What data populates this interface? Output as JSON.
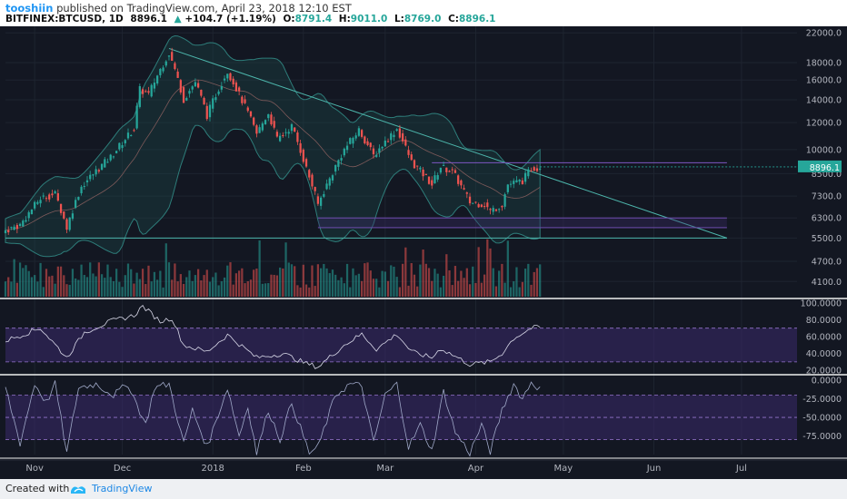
{
  "header": {
    "author": "tooshiin",
    "published": "published on TradingView.com, April 23, 2018 12:10 EST",
    "symbol": "BITFINEX:BTCUSD, 1D",
    "last": "8896.1",
    "change": "+104.7 (+1.19%)",
    "open_label": "O:",
    "open": "8791.4",
    "high_label": "H:",
    "high": "9011.0",
    "low_label": "L:",
    "low": "8769.0",
    "close_label": "C:",
    "close": "8896.1"
  },
  "footer": {
    "created": "Created with",
    "brand": "TradingView"
  },
  "colors": {
    "up": "#26a69a",
    "down": "#ef5350",
    "background": "#131722",
    "grid": "#1e2430",
    "rsi_band": "#3b2a6b",
    "line": "#d8d8e8"
  },
  "chart_data": [
    {
      "type": "line",
      "name": "price",
      "scale": "log",
      "ylim": [
        3700,
        23000
      ],
      "price_ticks": [
        "22000.0",
        "18000.0",
        "16000.0",
        "14000.0",
        "12000.0",
        "10000.0",
        "8500.0",
        "7300.0",
        "6300.0",
        "5500.0",
        "4700.0",
        "4100.0"
      ],
      "last_price_label": "8896.1",
      "x_ticks": [
        "Nov",
        "Dec",
        "2018",
        "Feb",
        "Mar",
        "Apr",
        "May",
        "Jun",
        "Jul"
      ],
      "x_range": [
        "2017-10-22",
        "2018-07-20"
      ],
      "keypoints": [
        [
          "2017-10-22",
          5800
        ],
        [
          "2017-10-27",
          6000
        ],
        [
          "2017-11-03",
          7200
        ],
        [
          "2017-11-08",
          7400
        ],
        [
          "2017-11-12",
          5900
        ],
        [
          "2017-11-17",
          7800
        ],
        [
          "2017-11-27",
          9500
        ],
        [
          "2017-12-05",
          11500
        ],
        [
          "2017-12-07",
          15000
        ],
        [
          "2017-12-10",
          14500
        ],
        [
          "2017-12-17",
          19200
        ],
        [
          "2017-12-22",
          14000
        ],
        [
          "2017-12-26",
          15800
        ],
        [
          "2017-12-30",
          12600
        ],
        [
          "2018-01-06",
          17000
        ],
        [
          "2018-01-10",
          14500
        ],
        [
          "2018-01-16",
          11100
        ],
        [
          "2018-01-20",
          12800
        ],
        [
          "2018-01-23",
          10700
        ],
        [
          "2018-01-28",
          11700
        ],
        [
          "2018-02-02",
          8800
        ],
        [
          "2018-02-06",
          6900
        ],
        [
          "2018-02-10",
          8200
        ],
        [
          "2018-02-15",
          10000
        ],
        [
          "2018-02-20",
          11400
        ],
        [
          "2018-02-25",
          9600
        ],
        [
          "2018-03-05",
          11500
        ],
        [
          "2018-03-10",
          9200
        ],
        [
          "2018-03-17",
          7900
        ],
        [
          "2018-03-20",
          8900
        ],
        [
          "2018-03-24",
          8600
        ],
        [
          "2018-03-30",
          7000
        ],
        [
          "2018-04-04",
          6900
        ],
        [
          "2018-04-06",
          6600
        ],
        [
          "2018-04-10",
          6900
        ],
        [
          "2018-04-12",
          7900
        ],
        [
          "2018-04-17",
          8100
        ],
        [
          "2018-04-20",
          8800
        ],
        [
          "2018-04-23",
          8896.1
        ]
      ],
      "annotations": [
        {
          "label": "descending trendline",
          "from": [
            "2017-12-17",
            19800
          ],
          "to": [
            "2018-06-26",
            5500
          ]
        },
        {
          "label": "upper horizontal",
          "at": 9150,
          "from": "2018-03-17",
          "to": "2018-06-26"
        },
        {
          "label": "support level 6300",
          "at": 6300,
          "from": "2018-02-06",
          "to": "2018-06-26"
        },
        {
          "label": "support level 5900",
          "at": 5900,
          "from": "2018-02-06",
          "to": "2018-06-26"
        },
        {
          "label": "base line",
          "at": 5500,
          "from": "2017-10-22",
          "to": "2018-06-26"
        }
      ]
    },
    {
      "type": "line",
      "name": "RSI",
      "ylim": [
        17,
        103
      ],
      "ticks": [
        "100.0000",
        "80.0000",
        "60.0000",
        "40.0000",
        "20.0000"
      ],
      "band": [
        30,
        70
      ],
      "keypoints": [
        [
          "2017-10-22",
          55
        ],
        [
          "2017-11-03",
          70
        ],
        [
          "2017-11-12",
          35
        ],
        [
          "2017-11-18",
          65
        ],
        [
          "2017-11-27",
          78
        ],
        [
          "2017-12-05",
          85
        ],
        [
          "2017-12-08",
          96
        ],
        [
          "2017-12-14",
          78
        ],
        [
          "2017-12-18",
          82
        ],
        [
          "2017-12-22",
          50
        ],
        [
          "2017-12-30",
          42
        ],
        [
          "2018-01-06",
          62
        ],
        [
          "2018-01-16",
          35
        ],
        [
          "2018-01-25",
          40
        ],
        [
          "2018-02-02",
          28
        ],
        [
          "2018-02-06",
          24
        ],
        [
          "2018-02-15",
          50
        ],
        [
          "2018-02-21",
          63
        ],
        [
          "2018-02-26",
          45
        ],
        [
          "2018-03-05",
          63
        ],
        [
          "2018-03-10",
          42
        ],
        [
          "2018-03-17",
          35
        ],
        [
          "2018-03-20",
          46
        ],
        [
          "2018-03-30",
          27
        ],
        [
          "2018-04-06",
          30
        ],
        [
          "2018-04-10",
          40
        ],
        [
          "2018-04-14",
          58
        ],
        [
          "2018-04-20",
          70
        ],
        [
          "2018-04-23",
          71
        ]
      ]
    },
    {
      "type": "line",
      "name": "Williams %R",
      "ylim": [
        -100,
        5
      ],
      "ticks": [
        "0.0000",
        "-25.0000",
        "-50.0000",
        "-75.0000"
      ],
      "band": [
        -80,
        -20
      ],
      "keypoints": [
        [
          "2017-10-22",
          -10
        ],
        [
          "2017-10-27",
          -85
        ],
        [
          "2017-11-01",
          -5
        ],
        [
          "2017-11-05",
          -30
        ],
        [
          "2017-11-08",
          -5
        ],
        [
          "2017-11-12",
          -98
        ],
        [
          "2017-11-16",
          -10
        ],
        [
          "2017-11-22",
          -5
        ],
        [
          "2017-11-28",
          -20
        ],
        [
          "2017-12-03",
          -5
        ],
        [
          "2017-12-09",
          -60
        ],
        [
          "2017-12-12",
          -10
        ],
        [
          "2017-12-17",
          -5
        ],
        [
          "2017-12-22",
          -85
        ],
        [
          "2017-12-25",
          -40
        ],
        [
          "2017-12-30",
          -90
        ],
        [
          "2018-01-06",
          -10
        ],
        [
          "2018-01-10",
          -75
        ],
        [
          "2018-01-13",
          -35
        ],
        [
          "2018-01-16",
          -98
        ],
        [
          "2018-01-20",
          -40
        ],
        [
          "2018-01-24",
          -80
        ],
        [
          "2018-01-28",
          -30
        ],
        [
          "2018-02-03",
          -98
        ],
        [
          "2018-02-06",
          -90
        ],
        [
          "2018-02-12",
          -20
        ],
        [
          "2018-02-17",
          -5
        ],
        [
          "2018-02-21",
          -8
        ],
        [
          "2018-02-25",
          -85
        ],
        [
          "2018-03-01",
          -20
        ],
        [
          "2018-03-05",
          -5
        ],
        [
          "2018-03-09",
          -90
        ],
        [
          "2018-03-13",
          -60
        ],
        [
          "2018-03-17",
          -95
        ],
        [
          "2018-03-21",
          -15
        ],
        [
          "2018-03-25",
          -70
        ],
        [
          "2018-03-30",
          -98
        ],
        [
          "2018-04-03",
          -60
        ],
        [
          "2018-04-06",
          -96
        ],
        [
          "2018-04-10",
          -40
        ],
        [
          "2018-04-14",
          -5
        ],
        [
          "2018-04-17",
          -25
        ],
        [
          "2018-04-20",
          -2
        ],
        [
          "2018-04-23",
          -12
        ]
      ]
    }
  ]
}
